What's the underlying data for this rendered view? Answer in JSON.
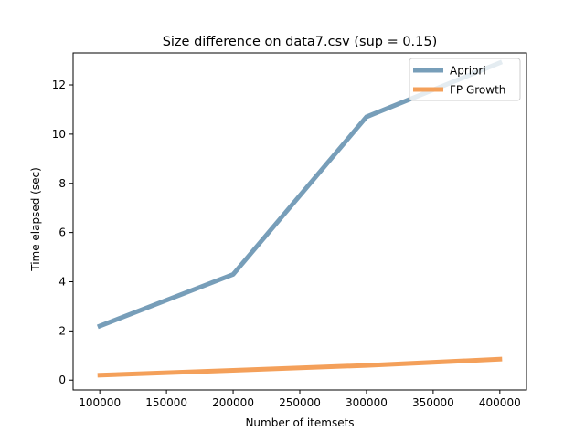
{
  "chart_data": {
    "type": "line",
    "title": "Size difference on data7.csv (sup = 0.15)",
    "xlabel": "Number of itemsets",
    "ylabel": "Time elapsed (sec)",
    "x": [
      100000,
      200000,
      300000,
      400000
    ],
    "xlim": [
      80000,
      420000
    ],
    "ylim": [
      -0.4,
      13.3
    ],
    "xticks": [
      100000,
      150000,
      200000,
      250000,
      300000,
      350000,
      400000
    ],
    "yticks": [
      0,
      2,
      4,
      6,
      8,
      10,
      12
    ],
    "grid": false,
    "legend_position": "top-right",
    "series": [
      {
        "name": "Apriori",
        "color": "#779eb9",
        "values": [
          2.2,
          4.3,
          10.7,
          12.9
        ]
      },
      {
        "name": "FP Growth",
        "color": "#f4a05a",
        "values": [
          0.2,
          0.4,
          0.6,
          0.85
        ]
      }
    ]
  }
}
